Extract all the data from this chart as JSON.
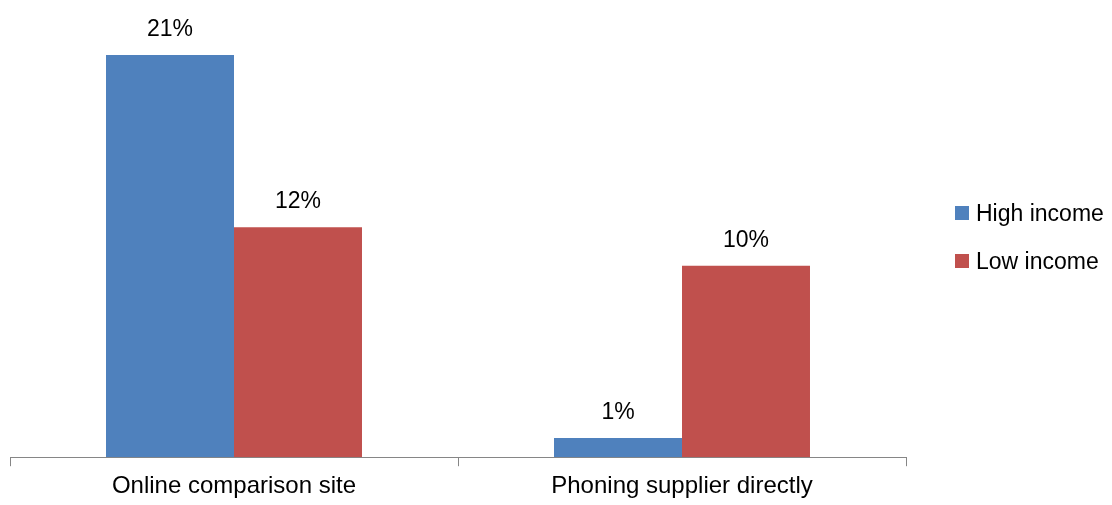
{
  "chart_data": {
    "type": "bar",
    "categories": [
      "Online comparison site",
      "Phoning supplier directly"
    ],
    "series": [
      {
        "name": "High income",
        "color": "#4f81bd",
        "values": [
          21,
          1
        ],
        "value_labels": [
          "21%",
          "1%"
        ]
      },
      {
        "name": "Low income",
        "color": "#c0504d",
        "values": [
          12,
          10
        ],
        "value_labels": [
          "12%",
          "10%"
        ]
      }
    ],
    "legend": "right",
    "grid": false
  }
}
